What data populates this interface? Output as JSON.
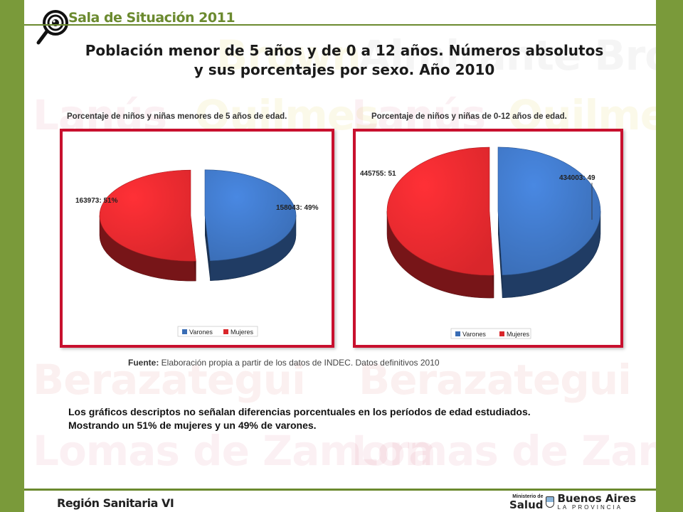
{
  "header": {
    "title": "Sala de Situación 2011"
  },
  "main_title": {
    "line1": "Población menor de 5 años y de 0 a 12 años. Números absolutos",
    "line2": "y sus porcentajes por sexo. Año 2010"
  },
  "watermark": [
    "Brown",
    "Almirante Brown",
    "Lanús",
    "Quilmes",
    "Lanús",
    "Quilmes",
    "Berazategui",
    "Berazategui",
    "Lomas de Zamora",
    "Lomas de Zamora"
  ],
  "colors": {
    "varones": "#3a6db5",
    "mujeres": "#d9262b",
    "frame": "#7a9a3a",
    "border": "#c8102e"
  },
  "chart_data": [
    {
      "type": "pie",
      "title": "Porcentaje de niños y niñas menores de 5 años de edad.",
      "slices": [
        {
          "name": "Varones",
          "value": 158043,
          "label": "158043: 49%"
        },
        {
          "name": "Mujeres",
          "value": 163973,
          "label": "163973: 51%"
        }
      ],
      "legend": [
        "Varones",
        "Mujeres"
      ],
      "legend_position": "bottom"
    },
    {
      "type": "pie",
      "title": "Porcentaje de niños y niñas de 0-12 años de edad.",
      "slices": [
        {
          "name": "Varones",
          "value": 434003,
          "label": "434003: 49"
        },
        {
          "name": "Mujeres",
          "value": 445755,
          "label": "445755: 51"
        }
      ],
      "legend": [
        "Varones",
        "Mujeres"
      ],
      "legend_position": "bottom"
    }
  ],
  "source": {
    "label": "Fuente:",
    "text": " Elaboración propia a partir de los datos de INDEC. Datos definitivos 2010"
  },
  "description": {
    "line1": "Los gráficos descriptos no señalan diferencias porcentuales en los períodos de edad estudiados.",
    "line2": "Mostrando un 51% de mujeres y un 49% de varones."
  },
  "footer": {
    "title": "Región Sanitaria VI",
    "ministerio": "Ministerio de",
    "salud": "Salud",
    "ba_title": "Buenos Aires",
    "ba_sub": "LA PROVINCIA"
  }
}
